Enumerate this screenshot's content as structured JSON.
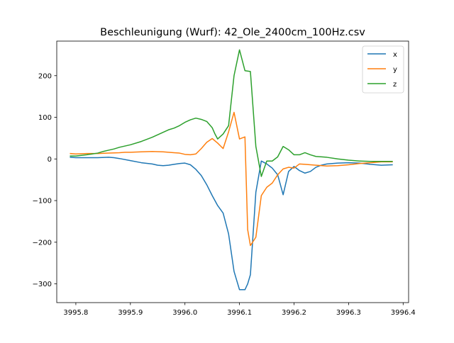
{
  "chart_data": {
    "type": "line",
    "title": "Beschleunigung (Wurf): 42_Ole_2400cm_100Hz.csv",
    "xlabel": "",
    "ylabel": "",
    "xlim": [
      3995.765,
      3996.41
    ],
    "ylim": [
      -345,
      283
    ],
    "xticks": [
      3995.8,
      3995.9,
      3996.0,
      3996.1,
      3996.2,
      3996.3,
      3996.4
    ],
    "xtick_labels": [
      "3995.8",
      "3995.9",
      "3996.0",
      "3996.1",
      "3996.2",
      "3996.3",
      "3996.4"
    ],
    "yticks": [
      -300,
      -200,
      -100,
      0,
      100,
      200
    ],
    "ytick_labels": [
      "−300",
      "−200",
      "−100",
      "0",
      "100",
      "200"
    ],
    "grid": false,
    "legend_position": "top-right",
    "series": [
      {
        "name": "x",
        "color": "#1f77b4",
        "points": [
          [
            3995.79,
            4
          ],
          [
            3995.8,
            3
          ],
          [
            3995.82,
            3
          ],
          [
            3995.84,
            3
          ],
          [
            3995.86,
            4
          ],
          [
            3995.87,
            3
          ],
          [
            3995.88,
            1
          ],
          [
            3995.9,
            -4
          ],
          [
            3995.92,
            -9
          ],
          [
            3995.94,
            -12
          ],
          [
            3995.95,
            -15
          ],
          [
            3995.96,
            -16
          ],
          [
            3995.97,
            -15
          ],
          [
            3995.98,
            -13
          ],
          [
            3995.99,
            -11
          ],
          [
            3996.0,
            -10
          ],
          [
            3996.01,
            -14
          ],
          [
            3996.02,
            -25
          ],
          [
            3996.03,
            -40
          ],
          [
            3996.04,
            -62
          ],
          [
            3996.05,
            -88
          ],
          [
            3996.06,
            -112
          ],
          [
            3996.07,
            -130
          ],
          [
            3996.08,
            -180
          ],
          [
            3996.09,
            -270
          ],
          [
            3996.1,
            -314
          ],
          [
            3996.11,
            -314
          ],
          [
            3996.115,
            -300
          ],
          [
            3996.12,
            -278
          ],
          [
            3996.13,
            -80
          ],
          [
            3996.14,
            -5
          ],
          [
            3996.15,
            -12
          ],
          [
            3996.16,
            -22
          ],
          [
            3996.17,
            -38
          ],
          [
            3996.18,
            -86
          ],
          [
            3996.19,
            -30
          ],
          [
            3996.2,
            -18
          ],
          [
            3996.21,
            -28
          ],
          [
            3996.22,
            -34
          ],
          [
            3996.23,
            -30
          ],
          [
            3996.24,
            -20
          ],
          [
            3996.25,
            -15
          ],
          [
            3996.26,
            -12
          ],
          [
            3996.28,
            -10
          ],
          [
            3996.3,
            -9
          ],
          [
            3996.32,
            -10
          ],
          [
            3996.34,
            -13
          ],
          [
            3996.36,
            -15
          ],
          [
            3996.38,
            -14
          ]
        ]
      },
      {
        "name": "y",
        "color": "#ff7f0e",
        "points": [
          [
            3995.79,
            13
          ],
          [
            3995.8,
            12
          ],
          [
            3995.82,
            13
          ],
          [
            3995.84,
            13
          ],
          [
            3995.86,
            14
          ],
          [
            3995.88,
            15
          ],
          [
            3995.89,
            16
          ],
          [
            3995.9,
            16
          ],
          [
            3995.92,
            17
          ],
          [
            3995.94,
            18
          ],
          [
            3995.96,
            17
          ],
          [
            3995.98,
            15
          ],
          [
            3995.99,
            14
          ],
          [
            3996.0,
            11
          ],
          [
            3996.01,
            10
          ],
          [
            3996.02,
            12
          ],
          [
            3996.03,
            25
          ],
          [
            3996.04,
            40
          ],
          [
            3996.05,
            49
          ],
          [
            3996.06,
            38
          ],
          [
            3996.07,
            25
          ],
          [
            3996.08,
            65
          ],
          [
            3996.09,
            112
          ],
          [
            3996.1,
            48
          ],
          [
            3996.11,
            53
          ],
          [
            3996.115,
            -170
          ],
          [
            3996.12,
            -208
          ],
          [
            3996.13,
            -188
          ],
          [
            3996.14,
            -88
          ],
          [
            3996.15,
            -68
          ],
          [
            3996.16,
            -58
          ],
          [
            3996.17,
            -38
          ],
          [
            3996.18,
            -24
          ],
          [
            3996.19,
            -20
          ],
          [
            3996.2,
            -22
          ],
          [
            3996.21,
            -12
          ],
          [
            3996.22,
            -13
          ],
          [
            3996.24,
            -15
          ],
          [
            3996.26,
            -17
          ],
          [
            3996.28,
            -16
          ],
          [
            3996.3,
            -14
          ],
          [
            3996.32,
            -11
          ],
          [
            3996.34,
            -9
          ],
          [
            3996.36,
            -7
          ],
          [
            3996.38,
            -7
          ]
        ]
      },
      {
        "name": "z",
        "color": "#2ca02c",
        "points": [
          [
            3995.79,
            7
          ],
          [
            3995.8,
            7
          ],
          [
            3995.82,
            10
          ],
          [
            3995.84,
            14
          ],
          [
            3995.85,
            18
          ],
          [
            3995.86,
            21
          ],
          [
            3995.87,
            24
          ],
          [
            3995.88,
            28
          ],
          [
            3995.9,
            34
          ],
          [
            3995.92,
            42
          ],
          [
            3995.94,
            52
          ],
          [
            3995.96,
            64
          ],
          [
            3995.97,
            70
          ],
          [
            3995.98,
            74
          ],
          [
            3995.99,
            80
          ],
          [
            3996.0,
            88
          ],
          [
            3996.01,
            94
          ],
          [
            3996.02,
            98
          ],
          [
            3996.03,
            95
          ],
          [
            3996.04,
            90
          ],
          [
            3996.05,
            75
          ],
          [
            3996.055,
            60
          ],
          [
            3996.06,
            48
          ],
          [
            3996.07,
            60
          ],
          [
            3996.08,
            80
          ],
          [
            3996.09,
            200
          ],
          [
            3996.1,
            262
          ],
          [
            3996.11,
            212
          ],
          [
            3996.12,
            210
          ],
          [
            3996.13,
            30
          ],
          [
            3996.14,
            -42
          ],
          [
            3996.15,
            -5
          ],
          [
            3996.16,
            -5
          ],
          [
            3996.17,
            5
          ],
          [
            3996.18,
            30
          ],
          [
            3996.19,
            22
          ],
          [
            3996.2,
            10
          ],
          [
            3996.21,
            10
          ],
          [
            3996.22,
            15
          ],
          [
            3996.23,
            10
          ],
          [
            3996.24,
            6
          ],
          [
            3996.26,
            4
          ],
          [
            3996.28,
            0
          ],
          [
            3996.3,
            -3
          ],
          [
            3996.32,
            -5
          ],
          [
            3996.34,
            -6
          ],
          [
            3996.36,
            -6
          ],
          [
            3996.38,
            -6
          ]
        ]
      }
    ]
  }
}
